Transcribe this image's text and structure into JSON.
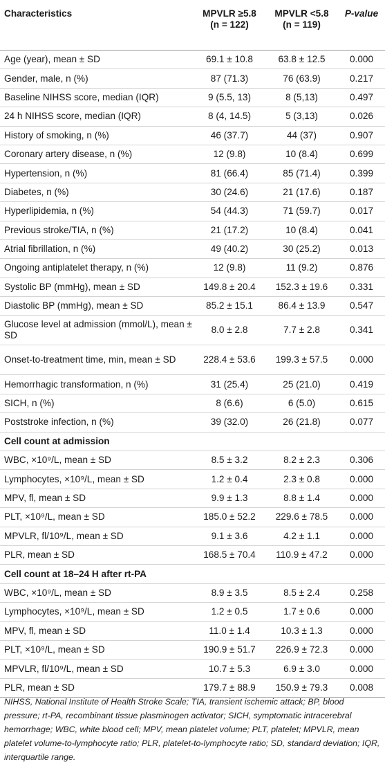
{
  "table": {
    "headers": {
      "characteristics": "Characteristics",
      "g1_line1": "MPVLR ≥5.8",
      "g1_line2": "(n = 122)",
      "g2_line1": "MPVLR <5.8",
      "g2_line2": "(n = 119)",
      "pvalue": "P-value"
    },
    "rows": [
      {
        "label": "Age (year), mean ± SD",
        "g1": "69.1 ± 10.8",
        "g2": "63.8 ± 12.5",
        "p": "0.000"
      },
      {
        "label": "Gender, male, n (%)",
        "g1": "87 (71.3)",
        "g2": "76 (63.9)",
        "p": "0.217"
      },
      {
        "label": "Baseline NIHSS score, median (IQR)",
        "g1": "9 (5.5, 13)",
        "g2": "8 (5,13)",
        "p": "0.497"
      },
      {
        "label": "24 h NIHSS score, median (IQR)",
        "g1": "8 (4, 14.5)",
        "g2": "5 (3,13)",
        "p": "0.026"
      },
      {
        "label": "History of smoking, n (%)",
        "g1": "46 (37.7)",
        "g2": "44 (37)",
        "p": "0.907"
      },
      {
        "label": "Coronary artery disease, n (%)",
        "g1": "12 (9.8)",
        "g2": "10 (8.4)",
        "p": "0.699"
      },
      {
        "label": "Hypertension, n (%)",
        "g1": "81 (66.4)",
        "g2": "85 (71.4)",
        "p": "0.399"
      },
      {
        "label": "Diabetes, n (%)",
        "g1": "30 (24.6)",
        "g2": "21 (17.6)",
        "p": "0.187"
      },
      {
        "label": "Hyperlipidemia, n (%)",
        "g1": "54 (44.3)",
        "g2": "71 (59.7)",
        "p": "0.017"
      },
      {
        "label": "Previous stroke/TIA, n (%)",
        "g1": "21 (17.2)",
        "g2": "10 (8.4)",
        "p": "0.041"
      },
      {
        "label": "Atrial fibrillation, n (%)",
        "g1": "49 (40.2)",
        "g2": "30 (25.2)",
        "p": "0.013"
      },
      {
        "label": "Ongoing antiplatelet therapy, n (%)",
        "g1": "12 (9.8)",
        "g2": "11 (9.2)",
        "p": "0.876"
      },
      {
        "label": "Systolic BP (mmHg), mean ± SD",
        "g1": "149.8 ± 20.4",
        "g2": "152.3 ± 19.6",
        "p": "0.331"
      },
      {
        "label": "Diastolic BP (mmHg), mean ± SD",
        "g1": "85.2 ± 15.1",
        "g2": "86.4 ± 13.9",
        "p": "0.547"
      },
      {
        "label": "Glucose level at admission (mmol/L), mean ± SD",
        "g1": "8.0 ± 2.8",
        "g2": "7.7 ± 2.8",
        "p": "0.341"
      },
      {
        "label": "Onset-to-treatment time, min, mean ± SD",
        "g1": "228.4 ± 53.6",
        "g2": "199.3 ± 57.5",
        "p": "0.000"
      },
      {
        "label": "Hemorrhagic transformation, n (%)",
        "g1": "31 (25.4)",
        "g2": "25 (21.0)",
        "p": "0.419"
      },
      {
        "label": "SICH, n (%)",
        "g1": "8 (6.6)",
        "g2": "6 (5.0)",
        "p": "0.615"
      },
      {
        "label": "Poststroke infection, n (%)",
        "g1": "39 (32.0)",
        "g2": "26 (21.8)",
        "p": "0.077"
      }
    ],
    "section1": "Cell count at admission",
    "rows_admission": [
      {
        "label": "WBC, ×10⁹/L, mean ± SD",
        "g1": "8.5 ± 3.2",
        "g2": "8.2 ± 2.3",
        "p": "0.306"
      },
      {
        "label": "Lymphocytes, ×10⁹/L, mean ± SD",
        "g1": "1.2 ± 0.4",
        "g2": "2.3 ± 0.8",
        "p": "0.000"
      },
      {
        "label": "MPV, fl, mean ± SD",
        "g1": "9.9 ± 1.3",
        "g2": "8.8 ± 1.4",
        "p": "0.000"
      },
      {
        "label": "PLT, ×10⁹/L, mean ± SD",
        "g1": "185.0 ± 52.2",
        "g2": "229.6 ± 78.5",
        "p": "0.000"
      },
      {
        "label": "MPVLR, fl/10⁹/L, mean ± SD",
        "g1": "9.1 ± 3.6",
        "g2": "4.2 ± 1.1",
        "p": "0.000"
      },
      {
        "label": "PLR, mean ± SD",
        "g1": "168.5 ± 70.4",
        "g2": "110.9 ± 47.2",
        "p": "0.000"
      }
    ],
    "section2": "Cell count at 18–24 H after rt-PA",
    "rows_after": [
      {
        "label": "WBC, ×10⁹/L, mean ± SD",
        "g1": "8.9 ± 3.5",
        "g2": "8.5 ± 2.4",
        "p": "0.258"
      },
      {
        "label": "Lymphocytes, ×10⁹/L, mean ± SD",
        "g1": "1.2 ± 0.5",
        "g2": "1.7 ± 0.6",
        "p": "0.000"
      },
      {
        "label": "MPV, fl, mean ± SD",
        "g1": "11.0 ± 1.4",
        "g2": "10.3 ± 1.3",
        "p": "0.000"
      },
      {
        "label": "PLT, ×10⁹/L, mean ± SD",
        "g1": "190.9 ± 51.7",
        "g2": "226.9 ± 72.3",
        "p": "0.000"
      },
      {
        "label": "MPVLR, fl/10⁹/L, mean ± SD",
        "g1": "10.7 ± 5.3",
        "g2": "6.9 ± 3.0",
        "p": "0.000"
      },
      {
        "label": "PLR, mean ± SD",
        "g1": "179.7 ± 88.9",
        "g2": "150.9 ± 79.3",
        "p": "0.008"
      }
    ]
  },
  "footnote": "NIHSS, National Institute of Health Stroke Scale; TIA, transient ischemic attack; BP, blood pressure; rt-PA, recombinant tissue plasminogen activator; SICH, symptomatic intracerebral hemorrhage; WBC, white blood cell; MPV, mean platelet volume; PLT, platelet; MPVLR, mean platelet volume-to-lymphocyte ratio; PLR, platelet-to-lymphocyte ratio; SD, standard deviation; IQR, interquartile range."
}
